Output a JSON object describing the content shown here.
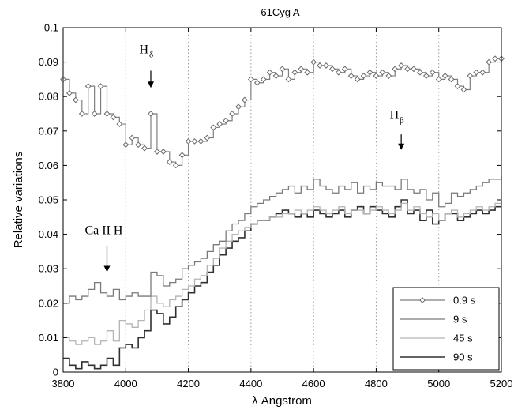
{
  "chart_data": {
    "type": "line",
    "title": "61Cyg A",
    "xlabel": "λ  Angstrom",
    "ylabel": "Relative  variations",
    "xlim": [
      3800,
      5200
    ],
    "ylim": [
      0,
      0.1
    ],
    "xticks": [
      "3800",
      "4000",
      "4200",
      "4400",
      "4600",
      "4800",
      "5000",
      "5200"
    ],
    "yticks": [
      "0",
      "0.01",
      "0.02",
      "0.03",
      "0.04",
      "0.05",
      "0.06",
      "0.07",
      "0.08",
      "0.09",
      "0.1"
    ],
    "x_grid": [
      4000,
      4200,
      4400,
      4600,
      4800,
      5000
    ],
    "legend_position": "lower-right",
    "step_width": 20,
    "annotations": [
      {
        "base": "H",
        "sub": "δ",
        "x": 4080,
        "text_y": 0.0925,
        "arrow_from": 0.0875,
        "arrow_to": 0.0825
      },
      {
        "base": "H",
        "sub": "β",
        "x": 4880,
        "text_y": 0.0735,
        "arrow_from": 0.069,
        "arrow_to": 0.0645
      },
      {
        "base": "Ca II H",
        "sub": "",
        "x": 3940,
        "text_y": 0.04,
        "arrow_from": 0.0365,
        "arrow_to": 0.029
      }
    ],
    "series": [
      {
        "name": "0.9 s",
        "color": "#7f7f7f",
        "width": 1.2,
        "marker": "diamond",
        "x": [
          3800,
          3820,
          3840,
          3860,
          3880,
          3900,
          3920,
          3940,
          3960,
          3980,
          4000,
          4020,
          4040,
          4060,
          4080,
          4100,
          4120,
          4140,
          4160,
          4180,
          4200,
          4220,
          4240,
          4260,
          4280,
          4300,
          4320,
          4340,
          4360,
          4380,
          4400,
          4420,
          4440,
          4460,
          4480,
          4500,
          4520,
          4540,
          4560,
          4580,
          4600,
          4620,
          4640,
          4660,
          4680,
          4700,
          4720,
          4740,
          4760,
          4780,
          4800,
          4820,
          4840,
          4860,
          4880,
          4900,
          4920,
          4940,
          4960,
          4980,
          5000,
          5020,
          5040,
          5060,
          5080,
          5100,
          5120,
          5140,
          5160,
          5180,
          5200
        ],
        "values": [
          0.085,
          0.081,
          0.079,
          0.075,
          0.083,
          0.075,
          0.083,
          0.075,
          0.074,
          0.072,
          0.066,
          0.068,
          0.066,
          0.065,
          0.075,
          0.064,
          0.064,
          0.061,
          0.06,
          0.063,
          0.067,
          0.067,
          0.067,
          0.068,
          0.071,
          0.072,
          0.073,
          0.075,
          0.077,
          0.079,
          0.085,
          0.084,
          0.085,
          0.087,
          0.086,
          0.088,
          0.085,
          0.087,
          0.088,
          0.087,
          0.09,
          0.089,
          0.089,
          0.088,
          0.087,
          0.088,
          0.086,
          0.085,
          0.086,
          0.087,
          0.086,
          0.087,
          0.086,
          0.088,
          0.089,
          0.088,
          0.088,
          0.087,
          0.086,
          0.087,
          0.085,
          0.086,
          0.085,
          0.083,
          0.082,
          0.086,
          0.087,
          0.087,
          0.09,
          0.091,
          0.091
        ]
      },
      {
        "name": "9 s",
        "color": "#7a7a7a",
        "width": 1.3,
        "marker": "none",
        "x": [
          3800,
          3820,
          3840,
          3860,
          3880,
          3900,
          3920,
          3940,
          3960,
          3980,
          4000,
          4020,
          4040,
          4060,
          4080,
          4100,
          4120,
          4140,
          4160,
          4180,
          4200,
          4220,
          4240,
          4260,
          4280,
          4300,
          4320,
          4340,
          4360,
          4380,
          4400,
          4420,
          4440,
          4460,
          4480,
          4500,
          4520,
          4540,
          4560,
          4580,
          4600,
          4620,
          4640,
          4660,
          4680,
          4700,
          4720,
          4740,
          4760,
          4780,
          4800,
          4820,
          4840,
          4860,
          4880,
          4900,
          4920,
          4940,
          4960,
          4980,
          5000,
          5020,
          5040,
          5060,
          5080,
          5100,
          5120,
          5140,
          5160,
          5180,
          5200
        ],
        "values": [
          0.02,
          0.022,
          0.021,
          0.022,
          0.024,
          0.026,
          0.023,
          0.022,
          0.024,
          0.021,
          0.022,
          0.023,
          0.022,
          0.022,
          0.029,
          0.028,
          0.025,
          0.026,
          0.027,
          0.03,
          0.031,
          0.032,
          0.033,
          0.035,
          0.037,
          0.038,
          0.041,
          0.043,
          0.044,
          0.046,
          0.048,
          0.049,
          0.05,
          0.051,
          0.052,
          0.053,
          0.054,
          0.052,
          0.054,
          0.053,
          0.056,
          0.054,
          0.053,
          0.052,
          0.054,
          0.053,
          0.055,
          0.052,
          0.054,
          0.053,
          0.055,
          0.054,
          0.054,
          0.053,
          0.056,
          0.053,
          0.052,
          0.053,
          0.05,
          0.052,
          0.048,
          0.049,
          0.052,
          0.051,
          0.052,
          0.053,
          0.054,
          0.055,
          0.056,
          0.056,
          0.057
        ]
      },
      {
        "name": "45 s",
        "color": "#b4b4b4",
        "width": 1.3,
        "marker": "none",
        "x": [
          3800,
          3820,
          3840,
          3860,
          3880,
          3900,
          3920,
          3940,
          3960,
          3980,
          4000,
          4020,
          4040,
          4060,
          4080,
          4100,
          4120,
          4140,
          4160,
          4180,
          4200,
          4220,
          4240,
          4260,
          4280,
          4300,
          4320,
          4340,
          4360,
          4380,
          4400,
          4420,
          4440,
          4460,
          4480,
          4500,
          4520,
          4540,
          4560,
          4580,
          4600,
          4620,
          4640,
          4660,
          4680,
          4700,
          4720,
          4740,
          4760,
          4780,
          4800,
          4820,
          4840,
          4860,
          4880,
          4900,
          4920,
          4940,
          4960,
          4980,
          5000,
          5020,
          5040,
          5060,
          5080,
          5100,
          5120,
          5140,
          5160,
          5180,
          5200
        ],
        "values": [
          0.01,
          0.009,
          0.008,
          0.009,
          0.01,
          0.008,
          0.009,
          0.012,
          0.009,
          0.015,
          0.014,
          0.013,
          0.015,
          0.018,
          0.022,
          0.02,
          0.019,
          0.021,
          0.022,
          0.024,
          0.025,
          0.027,
          0.028,
          0.031,
          0.033,
          0.036,
          0.038,
          0.04,
          0.041,
          0.042,
          0.043,
          0.044,
          0.044,
          0.045,
          0.045,
          0.046,
          0.046,
          0.047,
          0.046,
          0.047,
          0.048,
          0.047,
          0.046,
          0.047,
          0.048,
          0.046,
          0.047,
          0.047,
          0.046,
          0.047,
          0.048,
          0.047,
          0.046,
          0.047,
          0.049,
          0.047,
          0.048,
          0.046,
          0.045,
          0.046,
          0.044,
          0.046,
          0.047,
          0.045,
          0.046,
          0.047,
          0.048,
          0.047,
          0.048,
          0.049,
          0.05
        ]
      },
      {
        "name": "90 s",
        "color": "#303030",
        "width": 1.6,
        "marker": "none",
        "x": [
          3800,
          3820,
          3840,
          3860,
          3880,
          3900,
          3920,
          3940,
          3960,
          3980,
          4000,
          4020,
          4040,
          4060,
          4080,
          4100,
          4120,
          4140,
          4160,
          4180,
          4200,
          4220,
          4240,
          4260,
          4280,
          4300,
          4320,
          4340,
          4360,
          4380,
          4400,
          4420,
          4440,
          4460,
          4480,
          4500,
          4520,
          4540,
          4560,
          4580,
          4600,
          4620,
          4640,
          4660,
          4680,
          4700,
          4720,
          4740,
          4760,
          4780,
          4800,
          4820,
          4840,
          4860,
          4880,
          4900,
          4920,
          4940,
          4960,
          4980,
          5000,
          5020,
          5040,
          5060,
          5080,
          5100,
          5120,
          5140,
          5160,
          5180,
          5200
        ],
        "values": [
          0.004,
          0.002,
          0.001,
          0.003,
          0.002,
          0.001,
          0.002,
          0.004,
          0.002,
          0.007,
          0.008,
          0.007,
          0.01,
          0.012,
          0.018,
          0.017,
          0.014,
          0.016,
          0.019,
          0.021,
          0.023,
          0.025,
          0.026,
          0.029,
          0.031,
          0.034,
          0.036,
          0.038,
          0.039,
          0.041,
          0.043,
          0.044,
          0.044,
          0.045,
          0.046,
          0.047,
          0.046,
          0.045,
          0.046,
          0.045,
          0.047,
          0.046,
          0.045,
          0.046,
          0.047,
          0.045,
          0.047,
          0.048,
          0.046,
          0.048,
          0.047,
          0.046,
          0.045,
          0.048,
          0.05,
          0.046,
          0.047,
          0.044,
          0.047,
          0.043,
          0.044,
          0.046,
          0.046,
          0.044,
          0.045,
          0.046,
          0.047,
          0.046,
          0.047,
          0.048,
          0.048
        ]
      }
    ]
  }
}
